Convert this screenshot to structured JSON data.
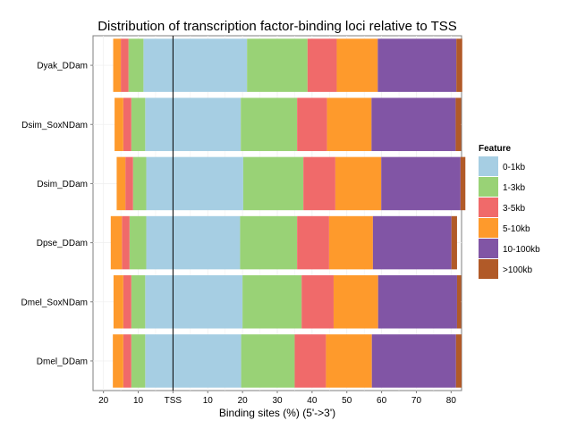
{
  "chart_data": {
    "type": "bar",
    "orientation": "horizontal",
    "stacking": "stacked",
    "title": "Distribution of transcription factor-binding loci relative to TSS",
    "xlabel": "Binding sites (%) (5'->3')",
    "ylabel": "",
    "xlim": [
      -23,
      83
    ],
    "x_ticks": [
      {
        "value": -20,
        "label": "20"
      },
      {
        "value": -10,
        "label": "10"
      },
      {
        "value": 0,
        "label": "TSS"
      },
      {
        "value": 10,
        "label": "10"
      },
      {
        "value": 20,
        "label": "20"
      },
      {
        "value": 30,
        "label": "30"
      },
      {
        "value": 40,
        "label": "40"
      },
      {
        "value": 50,
        "label": "50"
      },
      {
        "value": 60,
        "label": "60"
      },
      {
        "value": 70,
        "label": "70"
      },
      {
        "value": 80,
        "label": "80"
      }
    ],
    "reference_line": {
      "value": 0,
      "label": "TSS"
    },
    "categories": [
      "Dyak_DDam",
      "Dsim_SoxNDam",
      "Dsim_DDam",
      "Dpse_DDam",
      "Dmel_SoxNDam",
      "Dmel_DDam"
    ],
    "legend": {
      "title": "Feature",
      "position": "right"
    },
    "grid": true,
    "series": [
      {
        "name": "0-1kb",
        "color": "#a6cee3",
        "upstream": [
          8.5,
          8.0,
          7.7,
          7.7,
          8.0,
          8.0
        ],
        "downstream": [
          21.3,
          19.5,
          20.2,
          19.3,
          20.0,
          19.6
        ]
      },
      {
        "name": "1-3kb",
        "color": "#99d276",
        "upstream": [
          4.3,
          4.0,
          3.8,
          4.8,
          4.0,
          4.0
        ],
        "downstream": [
          17.4,
          16.2,
          17.3,
          16.4,
          17.0,
          15.4
        ]
      },
      {
        "name": "3-5kb",
        "color": "#f06a6a",
        "upstream": [
          2.2,
          2.3,
          2.2,
          2.2,
          2.3,
          2.3
        ],
        "downstream": [
          8.4,
          8.6,
          9.2,
          9.2,
          9.2,
          9.0
        ]
      },
      {
        "name": "5-10kb",
        "color": "#fe9a2c",
        "upstream": [
          2.2,
          2.5,
          2.5,
          3.2,
          2.8,
          3.0
        ],
        "downstream": [
          11.8,
          12.8,
          13.2,
          12.6,
          12.8,
          13.2
        ]
      },
      {
        "name": "10-100kb",
        "color": "#8155a5",
        "upstream": [
          0,
          0,
          0,
          0,
          0,
          0
        ],
        "downstream": [
          22.6,
          24.2,
          22.8,
          22.6,
          22.7,
          24.2
        ]
      },
      {
        "name": ">100kb",
        "color": "#b15a28",
        "upstream": [
          0,
          0,
          0,
          0,
          0,
          0
        ],
        "downstream": [
          1.7,
          1.6,
          1.4,
          1.6,
          1.2,
          1.6
        ]
      }
    ]
  }
}
